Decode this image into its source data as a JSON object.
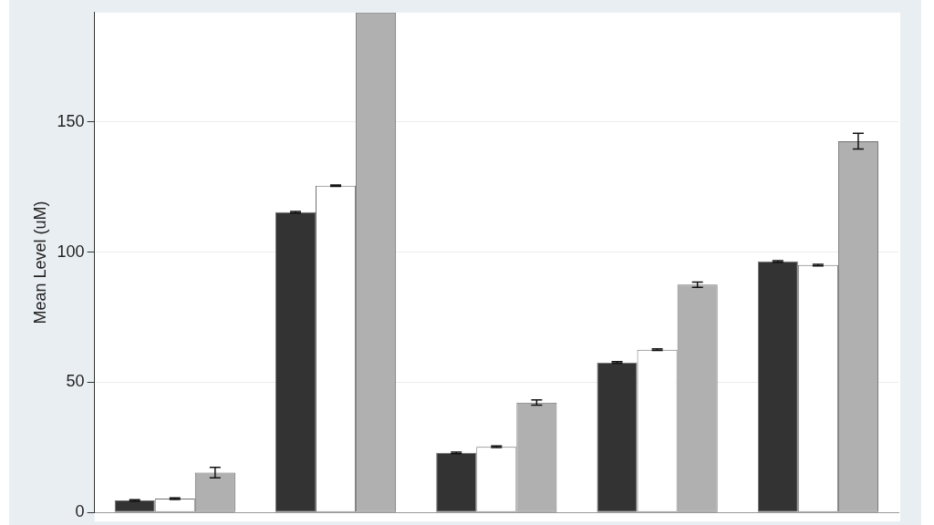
{
  "chart_data": {
    "type": "bar",
    "ylabel": "Mean Level (uM)",
    "categories": [
      null,
      null,
      null,
      null,
      null
    ],
    "series": [
      {
        "color": "#333333",
        "values": [
          4.6,
          115.3,
          22.9,
          57.6,
          96.4
        ],
        "errors": [
          0.3,
          0.3,
          0.3,
          0.3,
          0.3
        ]
      },
      {
        "color": "#ffffff",
        "values": [
          5.3,
          125.5,
          25.2,
          62.5,
          95
        ],
        "errors": [
          0.3,
          0.3,
          0.3,
          0.3,
          0.3
        ]
      },
      {
        "color": "#b0b0b0",
        "values": [
          15.3,
          192,
          42.2,
          87.5,
          142.6
        ],
        "errors": [
          2,
          null,
          1,
          1,
          3
        ]
      }
    ],
    "ylim": [
      0,
      192
    ],
    "yticks": [
      0,
      50,
      100,
      150
    ],
    "grid": "y",
    "legend": false,
    "tick_labels": "y"
  }
}
